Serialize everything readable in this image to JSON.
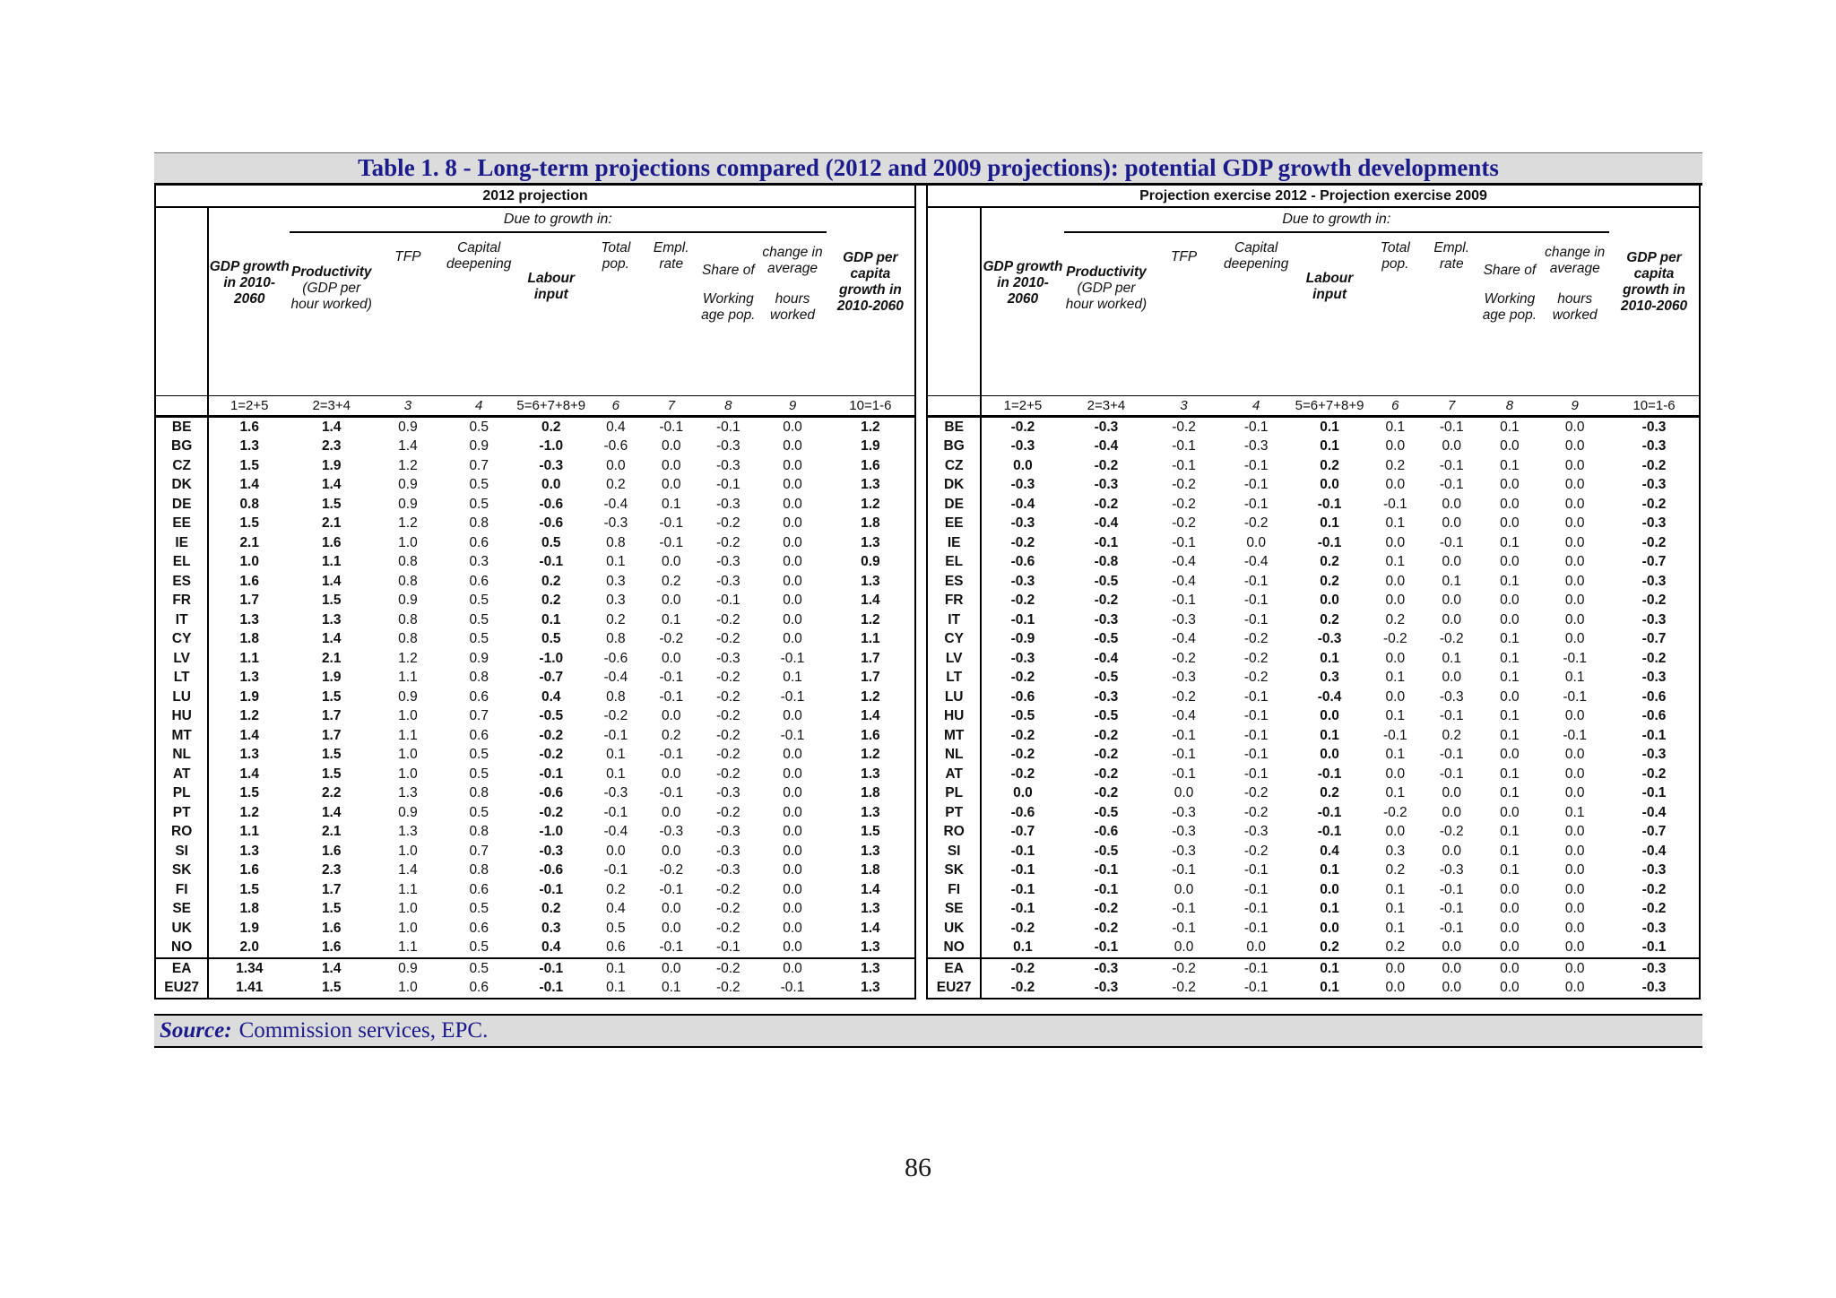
{
  "figure": {
    "title": "Table 1. 8 - Long-term projections compared (2012 and 2009 projections): potential GDP growth developments",
    "source_label": "Source:",
    "source_text": "Commission services, EPC.",
    "page_number": "86"
  },
  "colors": {
    "title_navy": "#1b1b8c",
    "band_gray": "#dcdcdc",
    "table_text": "#111111"
  },
  "columns": {
    "due_label": "Due to growth in:",
    "headers": [
      {
        "main": "GDP growth in 2010-2060",
        "sub": ""
      },
      {
        "main": "Productivity",
        "sub": "(GDP per hour worked)"
      },
      {
        "main": "TFP",
        "sub": ""
      },
      {
        "main": "Capital deepening",
        "sub": ""
      },
      {
        "main": "Labour input",
        "sub": ""
      },
      {
        "main": "Total pop.",
        "sub": ""
      },
      {
        "main": "Empl. rate",
        "sub": ""
      },
      {
        "main": "Share of",
        "sub": "Working age pop."
      },
      {
        "main": "change in average",
        "sub": "hours worked"
      },
      {
        "main": "GDP per capita growth in 2010-2060",
        "sub": ""
      }
    ],
    "numbers": [
      "1=2+5",
      "2=3+4",
      "3",
      "4",
      "5=6+7+8+9",
      "6",
      "7",
      "8",
      "9",
      "10=1-6"
    ]
  },
  "panels": [
    {
      "title": "2012 projection",
      "rows": [
        [
          "BE",
          "1.6",
          "1.4",
          "0.9",
          "0.5",
          "0.2",
          "0.4",
          "-0.1",
          "-0.1",
          "0.0",
          "1.2"
        ],
        [
          "BG",
          "1.3",
          "2.3",
          "1.4",
          "0.9",
          "-1.0",
          "-0.6",
          "0.0",
          "-0.3",
          "0.0",
          "1.9"
        ],
        [
          "CZ",
          "1.5",
          "1.9",
          "1.2",
          "0.7",
          "-0.3",
          "0.0",
          "0.0",
          "-0.3",
          "0.0",
          "1.6"
        ],
        [
          "DK",
          "1.4",
          "1.4",
          "0.9",
          "0.5",
          "0.0",
          "0.2",
          "0.0",
          "-0.1",
          "0.0",
          "1.3"
        ],
        [
          "DE",
          "0.8",
          "1.5",
          "0.9",
          "0.5",
          "-0.6",
          "-0.4",
          "0.1",
          "-0.3",
          "0.0",
          "1.2"
        ],
        [
          "EE",
          "1.5",
          "2.1",
          "1.2",
          "0.8",
          "-0.6",
          "-0.3",
          "-0.1",
          "-0.2",
          "0.0",
          "1.8"
        ],
        [
          "IE",
          "2.1",
          "1.6",
          "1.0",
          "0.6",
          "0.5",
          "0.8",
          "-0.1",
          "-0.2",
          "0.0",
          "1.3"
        ],
        [
          "EL",
          "1.0",
          "1.1",
          "0.8",
          "0.3",
          "-0.1",
          "0.1",
          "0.0",
          "-0.3",
          "0.0",
          "0.9"
        ],
        [
          "ES",
          "1.6",
          "1.4",
          "0.8",
          "0.6",
          "0.2",
          "0.3",
          "0.2",
          "-0.3",
          "0.0",
          "1.3"
        ],
        [
          "FR",
          "1.7",
          "1.5",
          "0.9",
          "0.5",
          "0.2",
          "0.3",
          "0.0",
          "-0.1",
          "0.0",
          "1.4"
        ],
        [
          "IT",
          "1.3",
          "1.3",
          "0.8",
          "0.5",
          "0.1",
          "0.2",
          "0.1",
          "-0.2",
          "0.0",
          "1.2"
        ],
        [
          "CY",
          "1.8",
          "1.4",
          "0.8",
          "0.5",
          "0.5",
          "0.8",
          "-0.2",
          "-0.2",
          "0.0",
          "1.1"
        ],
        [
          "LV",
          "1.1",
          "2.1",
          "1.2",
          "0.9",
          "-1.0",
          "-0.6",
          "0.0",
          "-0.3",
          "-0.1",
          "1.7"
        ],
        [
          "LT",
          "1.3",
          "1.9",
          "1.1",
          "0.8",
          "-0.7",
          "-0.4",
          "-0.1",
          "-0.2",
          "0.1",
          "1.7"
        ],
        [
          "LU",
          "1.9",
          "1.5",
          "0.9",
          "0.6",
          "0.4",
          "0.8",
          "-0.1",
          "-0.2",
          "-0.1",
          "1.2"
        ],
        [
          "HU",
          "1.2",
          "1.7",
          "1.0",
          "0.7",
          "-0.5",
          "-0.2",
          "0.0",
          "-0.2",
          "0.0",
          "1.4"
        ],
        [
          "MT",
          "1.4",
          "1.7",
          "1.1",
          "0.6",
          "-0.2",
          "-0.1",
          "0.2",
          "-0.2",
          "-0.1",
          "1.6"
        ],
        [
          "NL",
          "1.3",
          "1.5",
          "1.0",
          "0.5",
          "-0.2",
          "0.1",
          "-0.1",
          "-0.2",
          "0.0",
          "1.2"
        ],
        [
          "AT",
          "1.4",
          "1.5",
          "1.0",
          "0.5",
          "-0.1",
          "0.1",
          "0.0",
          "-0.2",
          "0.0",
          "1.3"
        ],
        [
          "PL",
          "1.5",
          "2.2",
          "1.3",
          "0.8",
          "-0.6",
          "-0.3",
          "-0.1",
          "-0.3",
          "0.0",
          "1.8"
        ],
        [
          "PT",
          "1.2",
          "1.4",
          "0.9",
          "0.5",
          "-0.2",
          "-0.1",
          "0.0",
          "-0.2",
          "0.0",
          "1.3"
        ],
        [
          "RO",
          "1.1",
          "2.1",
          "1.3",
          "0.8",
          "-1.0",
          "-0.4",
          "-0.3",
          "-0.3",
          "0.0",
          "1.5"
        ],
        [
          "SI",
          "1.3",
          "1.6",
          "1.0",
          "0.7",
          "-0.3",
          "0.0",
          "0.0",
          "-0.3",
          "0.0",
          "1.3"
        ],
        [
          "SK",
          "1.6",
          "2.3",
          "1.4",
          "0.8",
          "-0.6",
          "-0.1",
          "-0.2",
          "-0.3",
          "0.0",
          "1.8"
        ],
        [
          "FI",
          "1.5",
          "1.7",
          "1.1",
          "0.6",
          "-0.1",
          "0.2",
          "-0.1",
          "-0.2",
          "0.0",
          "1.4"
        ],
        [
          "SE",
          "1.8",
          "1.5",
          "1.0",
          "0.5",
          "0.2",
          "0.4",
          "0.0",
          "-0.2",
          "0.0",
          "1.3"
        ],
        [
          "UK",
          "1.9",
          "1.6",
          "1.0",
          "0.6",
          "0.3",
          "0.5",
          "0.0",
          "-0.2",
          "0.0",
          "1.4"
        ],
        [
          "NO",
          "2.0",
          "1.6",
          "1.1",
          "0.5",
          "0.4",
          "0.6",
          "-0.1",
          "-0.1",
          "0.0",
          "1.3"
        ]
      ],
      "totals": [
        [
          "EA",
          "1.34",
          "1.4",
          "0.9",
          "0.5",
          "-0.1",
          "0.1",
          "0.0",
          "-0.2",
          "0.0",
          "1.3"
        ],
        [
          "EU27",
          "1.41",
          "1.5",
          "1.0",
          "0.6",
          "-0.1",
          "0.1",
          "0.1",
          "-0.2",
          "-0.1",
          "1.3"
        ]
      ]
    },
    {
      "title": "Projection exercise 2012 - Projection exercise 2009",
      "rows": [
        [
          "BE",
          "-0.2",
          "-0.3",
          "-0.2",
          "-0.1",
          "0.1",
          "0.1",
          "-0.1",
          "0.1",
          "0.0",
          "-0.3"
        ],
        [
          "BG",
          "-0.3",
          "-0.4",
          "-0.1",
          "-0.3",
          "0.1",
          "0.0",
          "0.0",
          "0.0",
          "0.0",
          "-0.3"
        ],
        [
          "CZ",
          "0.0",
          "-0.2",
          "-0.1",
          "-0.1",
          "0.2",
          "0.2",
          "-0.1",
          "0.1",
          "0.0",
          "-0.2"
        ],
        [
          "DK",
          "-0.3",
          "-0.3",
          "-0.2",
          "-0.1",
          "0.0",
          "0.0",
          "-0.1",
          "0.0",
          "0.0",
          "-0.3"
        ],
        [
          "DE",
          "-0.4",
          "-0.2",
          "-0.2",
          "-0.1",
          "-0.1",
          "-0.1",
          "0.0",
          "0.0",
          "0.0",
          "-0.2"
        ],
        [
          "EE",
          "-0.3",
          "-0.4",
          "-0.2",
          "-0.2",
          "0.1",
          "0.1",
          "0.0",
          "0.0",
          "0.0",
          "-0.3"
        ],
        [
          "IE",
          "-0.2",
          "-0.1",
          "-0.1",
          "0.0",
          "-0.1",
          "0.0",
          "-0.1",
          "0.1",
          "0.0",
          "-0.2"
        ],
        [
          "EL",
          "-0.6",
          "-0.8",
          "-0.4",
          "-0.4",
          "0.2",
          "0.1",
          "0.0",
          "0.0",
          "0.0",
          "-0.7"
        ],
        [
          "ES",
          "-0.3",
          "-0.5",
          "-0.4",
          "-0.1",
          "0.2",
          "0.0",
          "0.1",
          "0.1",
          "0.0",
          "-0.3"
        ],
        [
          "FR",
          "-0.2",
          "-0.2",
          "-0.1",
          "-0.1",
          "0.0",
          "0.0",
          "0.0",
          "0.0",
          "0.0",
          "-0.2"
        ],
        [
          "IT",
          "-0.1",
          "-0.3",
          "-0.3",
          "-0.1",
          "0.2",
          "0.2",
          "0.0",
          "0.0",
          "0.0",
          "-0.3"
        ],
        [
          "CY",
          "-0.9",
          "-0.5",
          "-0.4",
          "-0.2",
          "-0.3",
          "-0.2",
          "-0.2",
          "0.1",
          "0.0",
          "-0.7"
        ],
        [
          "LV",
          "-0.3",
          "-0.4",
          "-0.2",
          "-0.2",
          "0.1",
          "0.0",
          "0.1",
          "0.1",
          "-0.1",
          "-0.2"
        ],
        [
          "LT",
          "-0.2",
          "-0.5",
          "-0.3",
          "-0.2",
          "0.3",
          "0.1",
          "0.0",
          "0.1",
          "0.1",
          "-0.3"
        ],
        [
          "LU",
          "-0.6",
          "-0.3",
          "-0.2",
          "-0.1",
          "-0.4",
          "0.0",
          "-0.3",
          "0.0",
          "-0.1",
          "-0.6"
        ],
        [
          "HU",
          "-0.5",
          "-0.5",
          "-0.4",
          "-0.1",
          "0.0",
          "0.1",
          "-0.1",
          "0.1",
          "0.0",
          "-0.6"
        ],
        [
          "MT",
          "-0.2",
          "-0.2",
          "-0.1",
          "-0.1",
          "0.1",
          "-0.1",
          "0.2",
          "0.1",
          "-0.1",
          "-0.1"
        ],
        [
          "NL",
          "-0.2",
          "-0.2",
          "-0.1",
          "-0.1",
          "0.0",
          "0.1",
          "-0.1",
          "0.0",
          "0.0",
          "-0.3"
        ],
        [
          "AT",
          "-0.2",
          "-0.2",
          "-0.1",
          "-0.1",
          "-0.1",
          "0.0",
          "-0.1",
          "0.1",
          "0.0",
          "-0.2"
        ],
        [
          "PL",
          "0.0",
          "-0.2",
          "0.0",
          "-0.2",
          "0.2",
          "0.1",
          "0.0",
          "0.1",
          "0.0",
          "-0.1"
        ],
        [
          "PT",
          "-0.6",
          "-0.5",
          "-0.3",
          "-0.2",
          "-0.1",
          "-0.2",
          "0.0",
          "0.0",
          "0.1",
          "-0.4"
        ],
        [
          "RO",
          "-0.7",
          "-0.6",
          "-0.3",
          "-0.3",
          "-0.1",
          "0.0",
          "-0.2",
          "0.1",
          "0.0",
          "-0.7"
        ],
        [
          "SI",
          "-0.1",
          "-0.5",
          "-0.3",
          "-0.2",
          "0.4",
          "0.3",
          "0.0",
          "0.1",
          "0.0",
          "-0.4"
        ],
        [
          "SK",
          "-0.1",
          "-0.1",
          "-0.1",
          "-0.1",
          "0.1",
          "0.2",
          "-0.3",
          "0.1",
          "0.0",
          "-0.3"
        ],
        [
          "FI",
          "-0.1",
          "-0.1",
          "0.0",
          "-0.1",
          "0.0",
          "0.1",
          "-0.1",
          "0.0",
          "0.0",
          "-0.2"
        ],
        [
          "SE",
          "-0.1",
          "-0.2",
          "-0.1",
          "-0.1",
          "0.1",
          "0.1",
          "-0.1",
          "0.0",
          "0.0",
          "-0.2"
        ],
        [
          "UK",
          "-0.2",
          "-0.2",
          "-0.1",
          "-0.1",
          "0.0",
          "0.1",
          "-0.1",
          "0.0",
          "0.0",
          "-0.3"
        ],
        [
          "NO",
          "0.1",
          "-0.1",
          "0.0",
          "0.0",
          "0.2",
          "0.2",
          "0.0",
          "0.0",
          "0.0",
          "-0.1"
        ]
      ],
      "totals": [
        [
          "EA",
          "-0.2",
          "-0.3",
          "-0.2",
          "-0.1",
          "0.1",
          "0.0",
          "0.0",
          "0.0",
          "0.0",
          "-0.3"
        ],
        [
          "EU27",
          "-0.2",
          "-0.3",
          "-0.2",
          "-0.1",
          "0.1",
          "0.0",
          "0.0",
          "0.0",
          "0.0",
          "-0.3"
        ]
      ]
    }
  ]
}
